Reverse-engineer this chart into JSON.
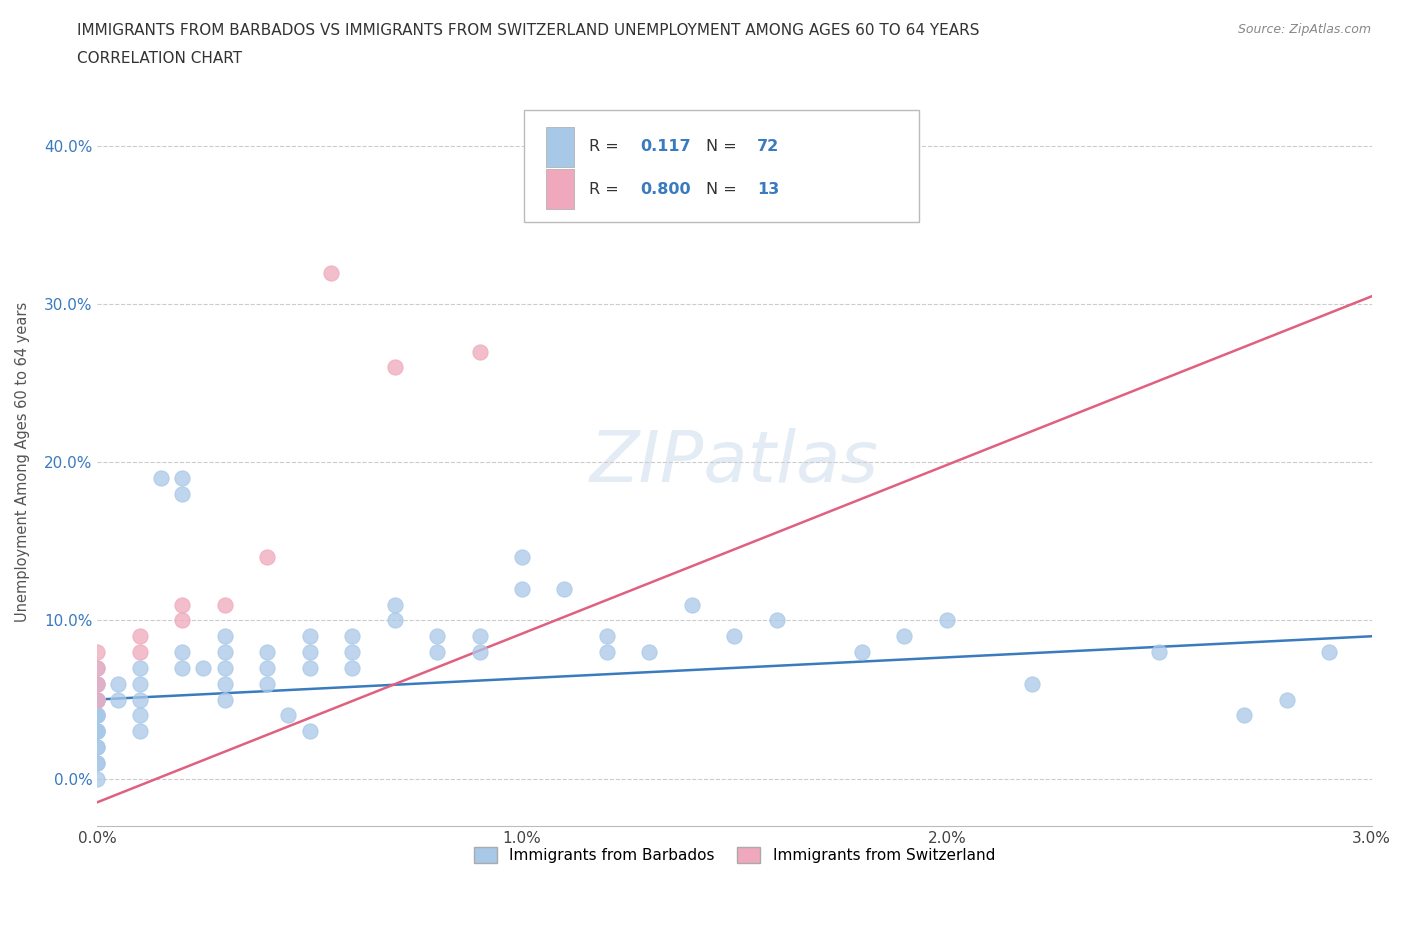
{
  "title_line1": "IMMIGRANTS FROM BARBADOS VS IMMIGRANTS FROM SWITZERLAND UNEMPLOYMENT AMONG AGES 60 TO 64 YEARS",
  "title_line2": "CORRELATION CHART",
  "source_text": "Source: ZipAtlas.com",
  "ylabel": "Unemployment Among Ages 60 to 64 years",
  "xlim": [
    0.0,
    0.03
  ],
  "ylim": [
    -0.03,
    0.43
  ],
  "color_barbados": "#a8c8e8",
  "color_switzerland": "#f0a8bc",
  "color_line_barbados": "#3a7abf",
  "color_line_switzerland": "#e06080",
  "watermark": "ZIPatlas",
  "barbados_x": [
    0.0,
    0.0,
    0.0,
    0.0,
    0.0,
    0.0,
    0.0,
    0.0,
    0.0,
    0.0,
    0.0,
    0.0,
    0.0,
    0.0,
    0.0,
    0.0,
    0.0,
    0.0,
    0.0,
    0.0,
    0.0005,
    0.0005,
    0.001,
    0.001,
    0.001,
    0.001,
    0.001,
    0.0015,
    0.002,
    0.002,
    0.002,
    0.002,
    0.0025,
    0.003,
    0.003,
    0.003,
    0.003,
    0.003,
    0.004,
    0.004,
    0.004,
    0.0045,
    0.005,
    0.005,
    0.005,
    0.005,
    0.006,
    0.006,
    0.006,
    0.007,
    0.007,
    0.008,
    0.008,
    0.009,
    0.009,
    0.01,
    0.01,
    0.011,
    0.012,
    0.012,
    0.013,
    0.014,
    0.015,
    0.016,
    0.018,
    0.019,
    0.02,
    0.022,
    0.025,
    0.027,
    0.028,
    0.029
  ],
  "barbados_y": [
    0.05,
    0.04,
    0.03,
    0.06,
    0.07,
    0.05,
    0.04,
    0.03,
    0.05,
    0.04,
    0.03,
    0.02,
    0.01,
    0.0,
    0.06,
    0.05,
    0.04,
    0.03,
    0.02,
    0.01,
    0.06,
    0.05,
    0.07,
    0.06,
    0.05,
    0.04,
    0.03,
    0.19,
    0.19,
    0.18,
    0.08,
    0.07,
    0.07,
    0.09,
    0.08,
    0.07,
    0.06,
    0.05,
    0.08,
    0.07,
    0.06,
    0.04,
    0.09,
    0.08,
    0.07,
    0.03,
    0.09,
    0.08,
    0.07,
    0.11,
    0.1,
    0.09,
    0.08,
    0.09,
    0.08,
    0.14,
    0.12,
    0.12,
    0.09,
    0.08,
    0.08,
    0.11,
    0.09,
    0.1,
    0.08,
    0.09,
    0.1,
    0.06,
    0.08,
    0.04,
    0.05,
    0.08
  ],
  "switzerland_x": [
    0.0,
    0.0,
    0.0,
    0.0,
    0.001,
    0.001,
    0.002,
    0.002,
    0.003,
    0.004,
    0.0055,
    0.007,
    0.009
  ],
  "switzerland_y": [
    0.05,
    0.06,
    0.07,
    0.08,
    0.08,
    0.09,
    0.1,
    0.11,
    0.11,
    0.14,
    0.32,
    0.26,
    0.27
  ],
  "line_barbados_x0": 0.0,
  "line_barbados_x1": 0.03,
  "line_barbados_y0": 0.05,
  "line_barbados_y1": 0.09,
  "line_switzerland_x0": 0.0,
  "line_switzerland_x1": 0.03,
  "line_switzerland_y0": -0.015,
  "line_switzerland_y1": 0.305
}
